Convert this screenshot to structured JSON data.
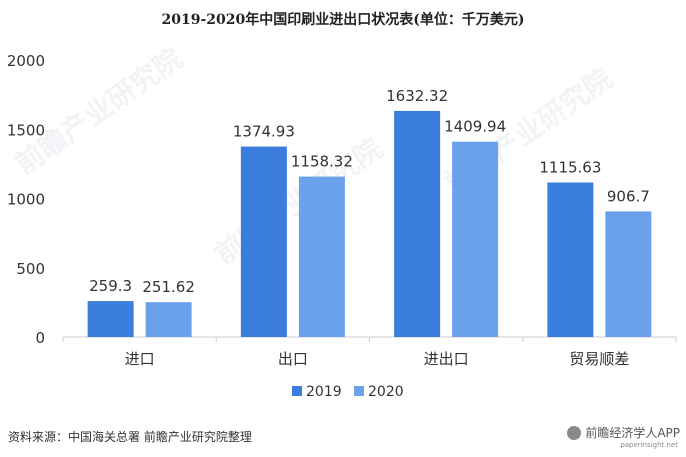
{
  "chart_data": {
    "type": "bar",
    "title": "2019-2020年中国印刷业进出口状况表(单位：千万美元)",
    "categories": [
      "进口",
      "出口",
      "进出口",
      "贸易顺差"
    ],
    "series": [
      {
        "name": "2019",
        "values": [
          259.3,
          1374.93,
          1632.32,
          1115.63
        ],
        "labels": [
          "259.3",
          "1374.93",
          "1632.32",
          "1115.63"
        ]
      },
      {
        "name": "2020",
        "values": [
          251.62,
          1158.32,
          1409.94,
          906.7
        ],
        "labels": [
          "251.62",
          "1158.32",
          "1409.94",
          "906.7"
        ]
      }
    ],
    "ylim": [
      0,
      2000
    ],
    "yticks": [
      0,
      500,
      1000,
      1500,
      2000
    ],
    "grid": false,
    "legend_position": "bottom-center"
  },
  "colors": {
    "series_2019": "#3b7ddd",
    "series_2020": "#6aa1ea",
    "axis": "#cccccc",
    "text": "#333333"
  },
  "source_note": "资料来源：中国海关总署 前瞻产业研究院整理",
  "watermark": {
    "brand": "前瞻经济学人APP",
    "site": "paperinsight.net",
    "icon": "qianzhan-logo-icon",
    "background_text": "前瞻产业研究院"
  }
}
